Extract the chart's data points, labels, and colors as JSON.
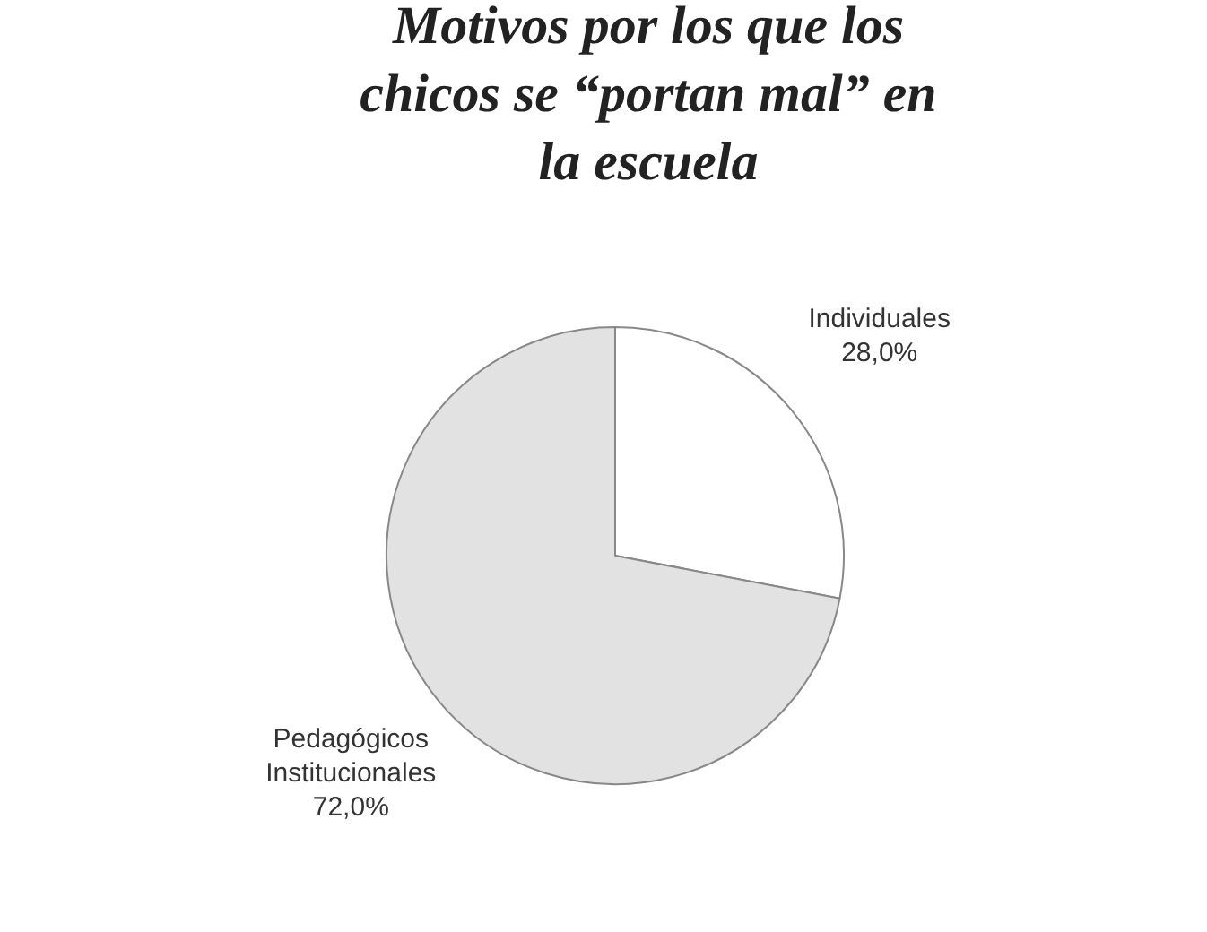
{
  "chart_data": {
    "type": "pie",
    "title": "Motivos por los que los chicos se “portan mal” en la escuela",
    "categories": [
      "Individuales",
      "Pedagógicos Institucionales"
    ],
    "values": [
      28,
      72
    ],
    "value_labels": [
      "28,0%",
      "72,0%"
    ],
    "colors": [
      "#ffffff",
      "#e2e2e2"
    ],
    "legend": false
  }
}
